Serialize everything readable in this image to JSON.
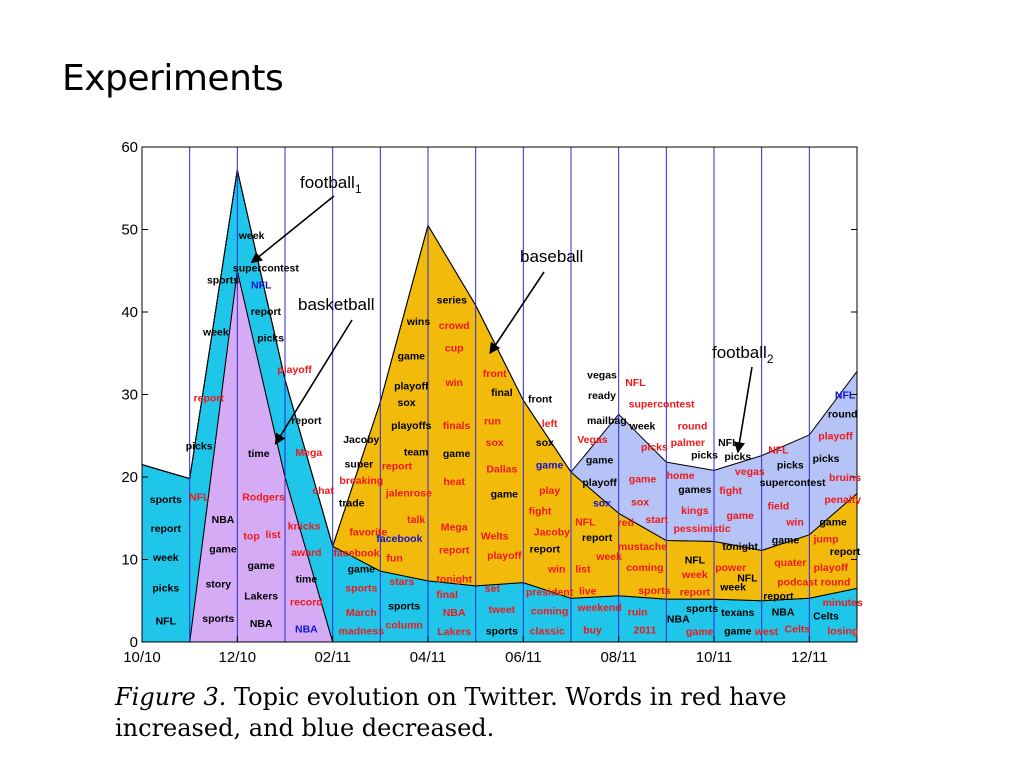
{
  "slide": {
    "title": "Experiments"
  },
  "caption": {
    "label": "Figure 3.",
    "text": "Topic evolution on Twitter.  Words in red have increased, and blue decreased."
  },
  "colors": {
    "football1": "#1fc6ea",
    "basketball": "#d5abf5",
    "baseball": "#f2bb0b",
    "football2": "#b5c3f6",
    "red_word": "#f01818",
    "blue_word": "#1212d6",
    "black_word": "#000000",
    "separator": "#2b2bd8"
  },
  "chart_data": {
    "type": "area",
    "stacked": true,
    "x": [
      "10/10",
      "11/10",
      "12/10",
      "01/11",
      "02/11",
      "03/11",
      "04/11",
      "05/11",
      "06/11",
      "07/11",
      "08/11",
      "09/11",
      "10/11",
      "11/11",
      "12/11",
      "01/12"
    ],
    "x_ticks": [
      "10/10",
      "12/10",
      "02/11",
      "04/11",
      "06/11",
      "08/11",
      "10/11",
      "12/11"
    ],
    "ylim": [
      0,
      60
    ],
    "y_ticks": [
      "0",
      "10",
      "20",
      "30",
      "40",
      "50",
      "60"
    ],
    "series": [
      {
        "key": "basketball",
        "color": "#d5abf5",
        "values": [
          0,
          0,
          45,
          20,
          0,
          0,
          0,
          0,
          0,
          0,
          0,
          0,
          0,
          0,
          0,
          0
        ]
      },
      {
        "key": "football1",
        "color": "#1fc6ea",
        "values": [
          21.5,
          19.8,
          12.2,
          11.8,
          11.6,
          8.6,
          7.4,
          6.8,
          7.2,
          5.3,
          5.6,
          5.2,
          5.2,
          5.0,
          5.3,
          6.5
        ]
      },
      {
        "key": "baseball",
        "color": "#f2bb0b",
        "values": [
          0,
          0,
          0,
          0,
          0,
          20.5,
          43.1,
          34.0,
          22.1,
          15.3,
          10.0,
          7.1,
          7.0,
          6.1,
          7.7,
          11.5
        ]
      },
      {
        "key": "football2",
        "color": "#b5c3f6",
        "values": [
          0,
          0,
          0,
          0,
          0,
          0,
          0,
          0,
          0,
          0,
          12.0,
          9.5,
          8.6,
          11.5,
          12.1,
          14.8
        ]
      }
    ],
    "annotations": [
      {
        "label": "football",
        "sub": "1",
        "anchor": [
          2.3,
          46.0
        ]
      },
      {
        "label": "basketball",
        "sub": "",
        "anchor": [
          2.8,
          24.0
        ]
      },
      {
        "label": "baseball",
        "sub": "",
        "anchor": [
          7.3,
          35.0
        ]
      },
      {
        "label": "football",
        "sub": "2",
        "anchor": [
          12.5,
          23.0
        ]
      }
    ],
    "words": [
      {
        "t": "sports",
        "c": "k",
        "x": 0.5,
        "y": 17.2
      },
      {
        "t": "report",
        "c": "k",
        "x": 0.5,
        "y": 13.7
      },
      {
        "t": "week",
        "c": "k",
        "x": 0.5,
        "y": 10.2
      },
      {
        "t": "picks",
        "c": "k",
        "x": 0.5,
        "y": 6.5
      },
      {
        "t": "NFL",
        "c": "k",
        "x": 0.5,
        "y": 2.5
      },
      {
        "t": "picks",
        "c": "k",
        "x": 1.2,
        "y": 23.7
      },
      {
        "t": "report",
        "c": "r",
        "x": 1.4,
        "y": 29.5
      },
      {
        "t": "NFL",
        "c": "r",
        "x": 1.2,
        "y": 17.5
      },
      {
        "t": "week",
        "c": "k",
        "x": 1.55,
        "y": 37.5
      },
      {
        "t": "sports",
        "c": "k",
        "x": 1.7,
        "y": 43.8
      },
      {
        "t": "week",
        "c": "k",
        "x": 2.3,
        "y": 49.2
      },
      {
        "t": "supercontest",
        "c": "k",
        "x": 2.6,
        "y": 45.3
      },
      {
        "t": "NFL",
        "c": "b",
        "x": 2.5,
        "y": 43.2
      },
      {
        "t": "report",
        "c": "k",
        "x": 2.6,
        "y": 40.0
      },
      {
        "t": "picks",
        "c": "k",
        "x": 2.7,
        "y": 36.8
      },
      {
        "t": "playoff",
        "c": "r",
        "x": 3.2,
        "y": 33.0
      },
      {
        "t": "report",
        "c": "k",
        "x": 3.45,
        "y": 26.8
      },
      {
        "t": "Mega",
        "c": "r",
        "x": 3.5,
        "y": 22.9
      },
      {
        "t": "chat",
        "c": "r",
        "x": 3.8,
        "y": 18.3
      },
      {
        "t": "NBA",
        "c": "k",
        "x": 1.7,
        "y": 14.8
      },
      {
        "t": "game",
        "c": "k",
        "x": 1.7,
        "y": 11.2
      },
      {
        "t": "story",
        "c": "k",
        "x": 1.6,
        "y": 7.0
      },
      {
        "t": "sports",
        "c": "k",
        "x": 1.6,
        "y": 2.8
      },
      {
        "t": "time",
        "c": "k",
        "x": 2.45,
        "y": 22.8
      },
      {
        "t": "Rodgers",
        "c": "r",
        "x": 2.55,
        "y": 17.5
      },
      {
        "t": "top",
        "c": "r",
        "x": 2.3,
        "y": 12.8
      },
      {
        "t": "list",
        "c": "r",
        "x": 2.75,
        "y": 13.0
      },
      {
        "t": "game",
        "c": "k",
        "x": 2.5,
        "y": 9.2
      },
      {
        "t": "Lakers",
        "c": "k",
        "x": 2.5,
        "y": 5.5
      },
      {
        "t": "NBA",
        "c": "k",
        "x": 2.5,
        "y": 2.2
      },
      {
        "t": "knicks",
        "c": "r",
        "x": 3.4,
        "y": 14.0
      },
      {
        "t": "award",
        "c": "r",
        "x": 3.45,
        "y": 10.8
      },
      {
        "t": "time",
        "c": "k",
        "x": 3.45,
        "y": 7.6
      },
      {
        "t": "record",
        "c": "r",
        "x": 3.45,
        "y": 4.8
      },
      {
        "t": "NBA",
        "c": "b",
        "x": 3.45,
        "y": 1.5
      },
      {
        "t": "Jacoby",
        "c": "k",
        "x": 4.6,
        "y": 24.5
      },
      {
        "t": "super",
        "c": "k",
        "x": 4.55,
        "y": 21.5
      },
      {
        "t": "breaking",
        "c": "r",
        "x": 4.6,
        "y": 19.5
      },
      {
        "t": "trade",
        "c": "k",
        "x": 4.4,
        "y": 16.8
      },
      {
        "t": "favorite",
        "c": "r",
        "x": 4.75,
        "y": 13.3
      },
      {
        "t": "facebook",
        "c": "r",
        "x": 4.5,
        "y": 10.7
      },
      {
        "t": "game",
        "c": "k",
        "x": 4.6,
        "y": 8.8
      },
      {
        "t": "sports",
        "c": "r",
        "x": 4.6,
        "y": 6.5
      },
      {
        "t": "March",
        "c": "r",
        "x": 4.6,
        "y": 3.5
      },
      {
        "t": "madness",
        "c": "r",
        "x": 4.6,
        "y": 1.3
      },
      {
        "t": "report",
        "c": "r",
        "x": 5.35,
        "y": 21.3
      },
      {
        "t": "jalenrose",
        "c": "r",
        "x": 5.6,
        "y": 18.0
      },
      {
        "t": "talk",
        "c": "r",
        "x": 5.75,
        "y": 14.8
      },
      {
        "t": "facebook",
        "c": "b",
        "x": 5.4,
        "y": 12.5
      },
      {
        "t": "fun",
        "c": "r",
        "x": 5.3,
        "y": 10.1
      },
      {
        "t": "stars",
        "c": "r",
        "x": 5.45,
        "y": 7.3
      },
      {
        "t": "sports",
        "c": "k",
        "x": 5.5,
        "y": 4.3
      },
      {
        "t": "column",
        "c": "r",
        "x": 5.5,
        "y": 2.0
      },
      {
        "t": "wins",
        "c": "k",
        "x": 5.8,
        "y": 38.8
      },
      {
        "t": "game",
        "c": "k",
        "x": 5.65,
        "y": 34.6
      },
      {
        "t": "playoff",
        "c": "k",
        "x": 5.65,
        "y": 31.0
      },
      {
        "t": "sox",
        "c": "k",
        "x": 5.55,
        "y": 29.0
      },
      {
        "t": "playoffs",
        "c": "k",
        "x": 5.65,
        "y": 26.2
      },
      {
        "t": "team",
        "c": "k",
        "x": 5.75,
        "y": 23.0
      },
      {
        "t": "series",
        "c": "k",
        "x": 6.5,
        "y": 41.4
      },
      {
        "t": "crowd",
        "c": "r",
        "x": 6.55,
        "y": 38.3
      },
      {
        "t": "cup",
        "c": "r",
        "x": 6.55,
        "y": 35.6
      },
      {
        "t": "win",
        "c": "r",
        "x": 6.55,
        "y": 31.4
      },
      {
        "t": "finals",
        "c": "r",
        "x": 6.6,
        "y": 26.2
      },
      {
        "t": "game",
        "c": "k",
        "x": 6.6,
        "y": 22.8
      },
      {
        "t": "heat",
        "c": "r",
        "x": 6.55,
        "y": 19.4
      },
      {
        "t": "Mega",
        "c": "r",
        "x": 6.55,
        "y": 13.9
      },
      {
        "t": "report",
        "c": "r",
        "x": 6.55,
        "y": 11.1
      },
      {
        "t": "tonight",
        "c": "r",
        "x": 6.55,
        "y": 7.6
      },
      {
        "t": "final",
        "c": "r",
        "x": 6.4,
        "y": 5.7
      },
      {
        "t": "NBA",
        "c": "r",
        "x": 6.55,
        "y": 3.5
      },
      {
        "t": "Lakers",
        "c": "r",
        "x": 6.55,
        "y": 1.2
      },
      {
        "t": "front",
        "c": "r",
        "x": 7.4,
        "y": 32.5
      },
      {
        "t": "final",
        "c": "k",
        "x": 7.55,
        "y": 30.2
      },
      {
        "t": "run",
        "c": "r",
        "x": 7.35,
        "y": 26.7
      },
      {
        "t": "sox",
        "c": "r",
        "x": 7.4,
        "y": 24.1
      },
      {
        "t": "Dallas",
        "c": "r",
        "x": 7.55,
        "y": 20.9
      },
      {
        "t": "game",
        "c": "k",
        "x": 7.6,
        "y": 17.9
      },
      {
        "t": "Welts",
        "c": "r",
        "x": 7.4,
        "y": 12.8
      },
      {
        "t": "playoff",
        "c": "r",
        "x": 7.6,
        "y": 10.4
      },
      {
        "t": "set",
        "c": "r",
        "x": 7.35,
        "y": 6.4
      },
      {
        "t": "tweet",
        "c": "r",
        "x": 7.55,
        "y": 3.9
      },
      {
        "t": "sports",
        "c": "k",
        "x": 7.55,
        "y": 1.3
      },
      {
        "t": "front",
        "c": "k",
        "x": 8.35,
        "y": 29.4
      },
      {
        "t": "left",
        "c": "r",
        "x": 8.55,
        "y": 26.4
      },
      {
        "t": "sox",
        "c": "k",
        "x": 8.45,
        "y": 24.1
      },
      {
        "t": "game",
        "c": "b",
        "x": 8.55,
        "y": 21.4
      },
      {
        "t": "play",
        "c": "r",
        "x": 8.55,
        "y": 18.3
      },
      {
        "t": "fight",
        "c": "r",
        "x": 8.35,
        "y": 15.8
      },
      {
        "t": "Jacoby",
        "c": "r",
        "x": 8.6,
        "y": 13.3
      },
      {
        "t": "report",
        "c": "k",
        "x": 8.45,
        "y": 11.2
      },
      {
        "t": "win",
        "c": "r",
        "x": 8.7,
        "y": 8.8
      },
      {
        "t": "president",
        "c": "r",
        "x": 8.55,
        "y": 6.0
      },
      {
        "t": "coming",
        "c": "r",
        "x": 8.55,
        "y": 3.7
      },
      {
        "t": "classic",
        "c": "r",
        "x": 8.5,
        "y": 1.3
      },
      {
        "t": "vegas",
        "c": "k",
        "x": 9.65,
        "y": 32.3
      },
      {
        "t": "ready",
        "c": "k",
        "x": 9.65,
        "y": 29.8
      },
      {
        "t": "mailbag",
        "c": "k",
        "x": 9.75,
        "y": 26.8
      },
      {
        "t": "Vegas",
        "c": "r",
        "x": 9.45,
        "y": 24.5
      },
      {
        "t": "game",
        "c": "k",
        "x": 9.6,
        "y": 22.0
      },
      {
        "t": "playoff",
        "c": "k",
        "x": 9.6,
        "y": 19.3
      },
      {
        "t": "sox",
        "c": "b",
        "x": 9.65,
        "y": 16.8
      },
      {
        "t": "NFL",
        "c": "r",
        "x": 9.3,
        "y": 14.5
      },
      {
        "t": "report",
        "c": "k",
        "x": 9.55,
        "y": 12.6
      },
      {
        "t": "week",
        "c": "r",
        "x": 9.8,
        "y": 10.3
      },
      {
        "t": "list",
        "c": "r",
        "x": 9.25,
        "y": 8.8
      },
      {
        "t": "live",
        "c": "r",
        "x": 9.35,
        "y": 6.1
      },
      {
        "t": "weekend",
        "c": "r",
        "x": 9.6,
        "y": 4.1
      },
      {
        "t": "buy",
        "c": "r",
        "x": 9.45,
        "y": 1.4
      },
      {
        "t": "NFL",
        "c": "r",
        "x": 10.35,
        "y": 31.4
      },
      {
        "t": "supercontest",
        "c": "r",
        "x": 10.9,
        "y": 28.8
      },
      {
        "t": "week",
        "c": "k",
        "x": 10.5,
        "y": 26.1
      },
      {
        "t": "picks",
        "c": "r",
        "x": 10.75,
        "y": 23.6
      },
      {
        "t": "game",
        "c": "r",
        "x": 10.5,
        "y": 19.7
      },
      {
        "t": "sox",
        "c": "r",
        "x": 10.45,
        "y": 16.9
      },
      {
        "t": "red",
        "c": "r",
        "x": 10.15,
        "y": 14.4
      },
      {
        "t": "start",
        "c": "r",
        "x": 10.8,
        "y": 14.8
      },
      {
        "t": "mustache",
        "c": "r",
        "x": 10.5,
        "y": 11.5
      },
      {
        "t": "coming",
        "c": "r",
        "x": 10.55,
        "y": 9.0
      },
      {
        "t": "sports",
        "c": "r",
        "x": 10.75,
        "y": 6.2
      },
      {
        "t": "ruin",
        "c": "r",
        "x": 10.4,
        "y": 3.6
      },
      {
        "t": "2011",
        "c": "r",
        "x": 10.55,
        "y": 1.4
      },
      {
        "t": "round",
        "c": "r",
        "x": 11.55,
        "y": 26.1
      },
      {
        "t": "palmer",
        "c": "r",
        "x": 11.45,
        "y": 24.1
      },
      {
        "t": "picks",
        "c": "k",
        "x": 11.8,
        "y": 22.6
      },
      {
        "t": "home",
        "c": "r",
        "x": 11.3,
        "y": 20.1
      },
      {
        "t": "games",
        "c": "k",
        "x": 11.6,
        "y": 18.4
      },
      {
        "t": "kings",
        "c": "r",
        "x": 11.6,
        "y": 15.9
      },
      {
        "t": "pessimistic",
        "c": "r",
        "x": 11.75,
        "y": 13.7
      },
      {
        "t": "NFL",
        "c": "k",
        "x": 11.6,
        "y": 9.9
      },
      {
        "t": "week",
        "c": "r",
        "x": 11.6,
        "y": 8.1
      },
      {
        "t": "report",
        "c": "r",
        "x": 11.6,
        "y": 6.0
      },
      {
        "t": "sports",
        "c": "k",
        "x": 11.75,
        "y": 4.0
      },
      {
        "t": "NBA",
        "c": "k",
        "x": 11.25,
        "y": 2.7
      },
      {
        "t": "game",
        "c": "r",
        "x": 11.7,
        "y": 1.2
      },
      {
        "t": "NFL",
        "c": "k",
        "x": 12.3,
        "y": 24.1
      },
      {
        "t": "picks",
        "c": "k",
        "x": 12.5,
        "y": 22.4
      },
      {
        "t": "vegas",
        "c": "r",
        "x": 12.75,
        "y": 20.6
      },
      {
        "t": "fight",
        "c": "r",
        "x": 12.35,
        "y": 18.3
      },
      {
        "t": "game",
        "c": "r",
        "x": 12.55,
        "y": 15.3
      },
      {
        "t": "tonight",
        "c": "k",
        "x": 12.55,
        "y": 11.5
      },
      {
        "t": "power",
        "c": "r",
        "x": 12.35,
        "y": 9.0
      },
      {
        "t": "NFL",
        "c": "k",
        "x": 12.7,
        "y": 7.7
      },
      {
        "t": "week",
        "c": "k",
        "x": 12.4,
        "y": 6.6
      },
      {
        "t": "texans",
        "c": "k",
        "x": 12.5,
        "y": 3.5
      },
      {
        "t": "game",
        "c": "k",
        "x": 12.5,
        "y": 1.3
      },
      {
        "t": "NFL",
        "c": "r",
        "x": 13.35,
        "y": 23.2
      },
      {
        "t": "picks",
        "c": "k",
        "x": 13.6,
        "y": 21.4
      },
      {
        "t": "supercontest",
        "c": "k",
        "x": 13.65,
        "y": 19.3
      },
      {
        "t": "field",
        "c": "r",
        "x": 13.35,
        "y": 16.4
      },
      {
        "t": "win",
        "c": "r",
        "x": 13.7,
        "y": 14.5
      },
      {
        "t": "game",
        "c": "k",
        "x": 13.5,
        "y": 12.3
      },
      {
        "t": "quater",
        "c": "r",
        "x": 13.6,
        "y": 9.6
      },
      {
        "t": "podcast",
        "c": "r",
        "x": 13.75,
        "y": 7.2
      },
      {
        "t": "report",
        "c": "k",
        "x": 13.35,
        "y": 5.5
      },
      {
        "t": "NBA",
        "c": "k",
        "x": 13.45,
        "y": 3.6
      },
      {
        "t": "west",
        "c": "r",
        "x": 13.1,
        "y": 1.2
      },
      {
        "t": "Celts",
        "c": "r",
        "x": 13.75,
        "y": 1.5
      },
      {
        "t": "NFL",
        "c": "b",
        "x": 14.75,
        "y": 29.9
      },
      {
        "t": "round",
        "c": "k",
        "x": 14.7,
        "y": 27.6
      },
      {
        "t": "playoff",
        "c": "r",
        "x": 14.55,
        "y": 24.9
      },
      {
        "t": "picks",
        "c": "k",
        "x": 14.35,
        "y": 22.2
      },
      {
        "t": "bruins",
        "c": "r",
        "x": 14.75,
        "y": 19.9
      },
      {
        "t": "penalty",
        "c": "r",
        "x": 14.7,
        "y": 17.2
      },
      {
        "t": "game",
        "c": "k",
        "x": 14.5,
        "y": 14.5
      },
      {
        "t": "jump",
        "c": "r",
        "x": 14.35,
        "y": 12.4
      },
      {
        "t": "report",
        "c": "k",
        "x": 14.75,
        "y": 10.9
      },
      {
        "t": "playoff",
        "c": "r",
        "x": 14.45,
        "y": 9.0
      },
      {
        "t": "round",
        "c": "r",
        "x": 14.55,
        "y": 7.2
      },
      {
        "t": "minutes",
        "c": "r",
        "x": 14.7,
        "y": 4.7
      },
      {
        "t": "Celts",
        "c": "k",
        "x": 14.35,
        "y": 3.1
      },
      {
        "t": "losing",
        "c": "r",
        "x": 14.7,
        "y": 1.3
      }
    ]
  }
}
